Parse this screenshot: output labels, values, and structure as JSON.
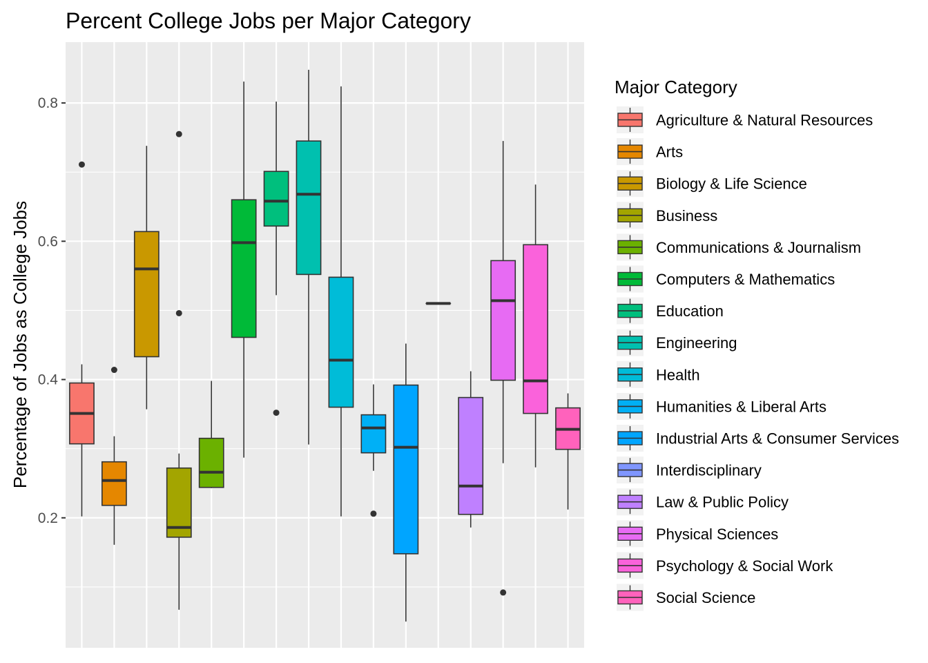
{
  "chart_data": {
    "type": "boxplot",
    "title": "Percent College Jobs per Major Category",
    "xlabel": "",
    "ylabel": "Percentage of Jobs as College Jobs",
    "ylim": [
      0.012,
      0.888
    ],
    "y_ticks": [
      0.2,
      0.4,
      0.6,
      0.8
    ],
    "y_tick_labels": [
      "0.2",
      "0.4",
      "0.6",
      "0.8"
    ],
    "grid": true,
    "legend": {
      "title": "Major Category",
      "position": "right"
    },
    "series": [
      {
        "name": "Agriculture & Natural Resources",
        "color": "#F8766D",
        "min": 0.202,
        "q1": 0.307,
        "median": 0.351,
        "q3": 0.395,
        "max": 0.422,
        "outliers": [
          0.711
        ]
      },
      {
        "name": "Arts",
        "color": "#E58700",
        "min": 0.161,
        "q1": 0.218,
        "median": 0.254,
        "q3": 0.281,
        "max": 0.318,
        "outliers": [
          0.414
        ]
      },
      {
        "name": "Biology & Life Science",
        "color": "#C99800",
        "min": 0.357,
        "q1": 0.433,
        "median": 0.56,
        "q3": 0.614,
        "max": 0.738,
        "outliers": []
      },
      {
        "name": "Business",
        "color": "#A3A500",
        "min": 0.067,
        "q1": 0.172,
        "median": 0.186,
        "q3": 0.272,
        "max": 0.293,
        "outliers": [
          0.496,
          0.755
        ]
      },
      {
        "name": "Communications & Journalism",
        "color": "#6BB100",
        "min": 0.243,
        "q1": 0.244,
        "median": 0.266,
        "q3": 0.315,
        "max": 0.398,
        "outliers": []
      },
      {
        "name": "Computers & Mathematics",
        "color": "#00BA38",
        "min": 0.287,
        "q1": 0.461,
        "median": 0.598,
        "q3": 0.66,
        "max": 0.831,
        "outliers": []
      },
      {
        "name": "Education",
        "color": "#00BF7D",
        "min": 0.522,
        "q1": 0.622,
        "median": 0.658,
        "q3": 0.701,
        "max": 0.802,
        "outliers": [
          0.352
        ]
      },
      {
        "name": "Engineering",
        "color": "#00C0AF",
        "min": 0.306,
        "q1": 0.552,
        "median": 0.668,
        "q3": 0.745,
        "max": 0.848,
        "outliers": []
      },
      {
        "name": "Health",
        "color": "#00BCD8",
        "min": 0.202,
        "q1": 0.36,
        "median": 0.428,
        "q3": 0.548,
        "max": 0.824,
        "outliers": []
      },
      {
        "name": "Humanities & Liberal Arts",
        "color": "#00B0F6",
        "min": 0.268,
        "q1": 0.294,
        "median": 0.33,
        "q3": 0.349,
        "max": 0.393,
        "outliers": [
          0.206
        ]
      },
      {
        "name": "Industrial Arts & Consumer Services",
        "color": "#00A5FF",
        "min": 0.05,
        "q1": 0.148,
        "median": 0.302,
        "q3": 0.392,
        "max": 0.452,
        "outliers": []
      },
      {
        "name": "Interdisciplinary",
        "color": "#7F96FF",
        "min": 0.51,
        "q1": 0.51,
        "median": 0.51,
        "q3": 0.51,
        "max": 0.51,
        "outliers": []
      },
      {
        "name": "Law & Public Policy",
        "color": "#BF80FF",
        "min": 0.186,
        "q1": 0.205,
        "median": 0.246,
        "q3": 0.374,
        "max": 0.412,
        "outliers": []
      },
      {
        "name": "Physical Sciences",
        "color": "#E76BF3",
        "min": 0.279,
        "q1": 0.399,
        "median": 0.514,
        "q3": 0.572,
        "max": 0.745,
        "outliers": [
          0.092
        ]
      },
      {
        "name": "Psychology & Social Work",
        "color": "#FA62DB",
        "min": 0.273,
        "q1": 0.351,
        "median": 0.398,
        "q3": 0.595,
        "max": 0.682,
        "outliers": []
      },
      {
        "name": "Social Science",
        "color": "#FF62BC",
        "min": 0.212,
        "q1": 0.299,
        "median": 0.328,
        "q3": 0.359,
        "max": 0.38,
        "outliers": []
      }
    ]
  }
}
